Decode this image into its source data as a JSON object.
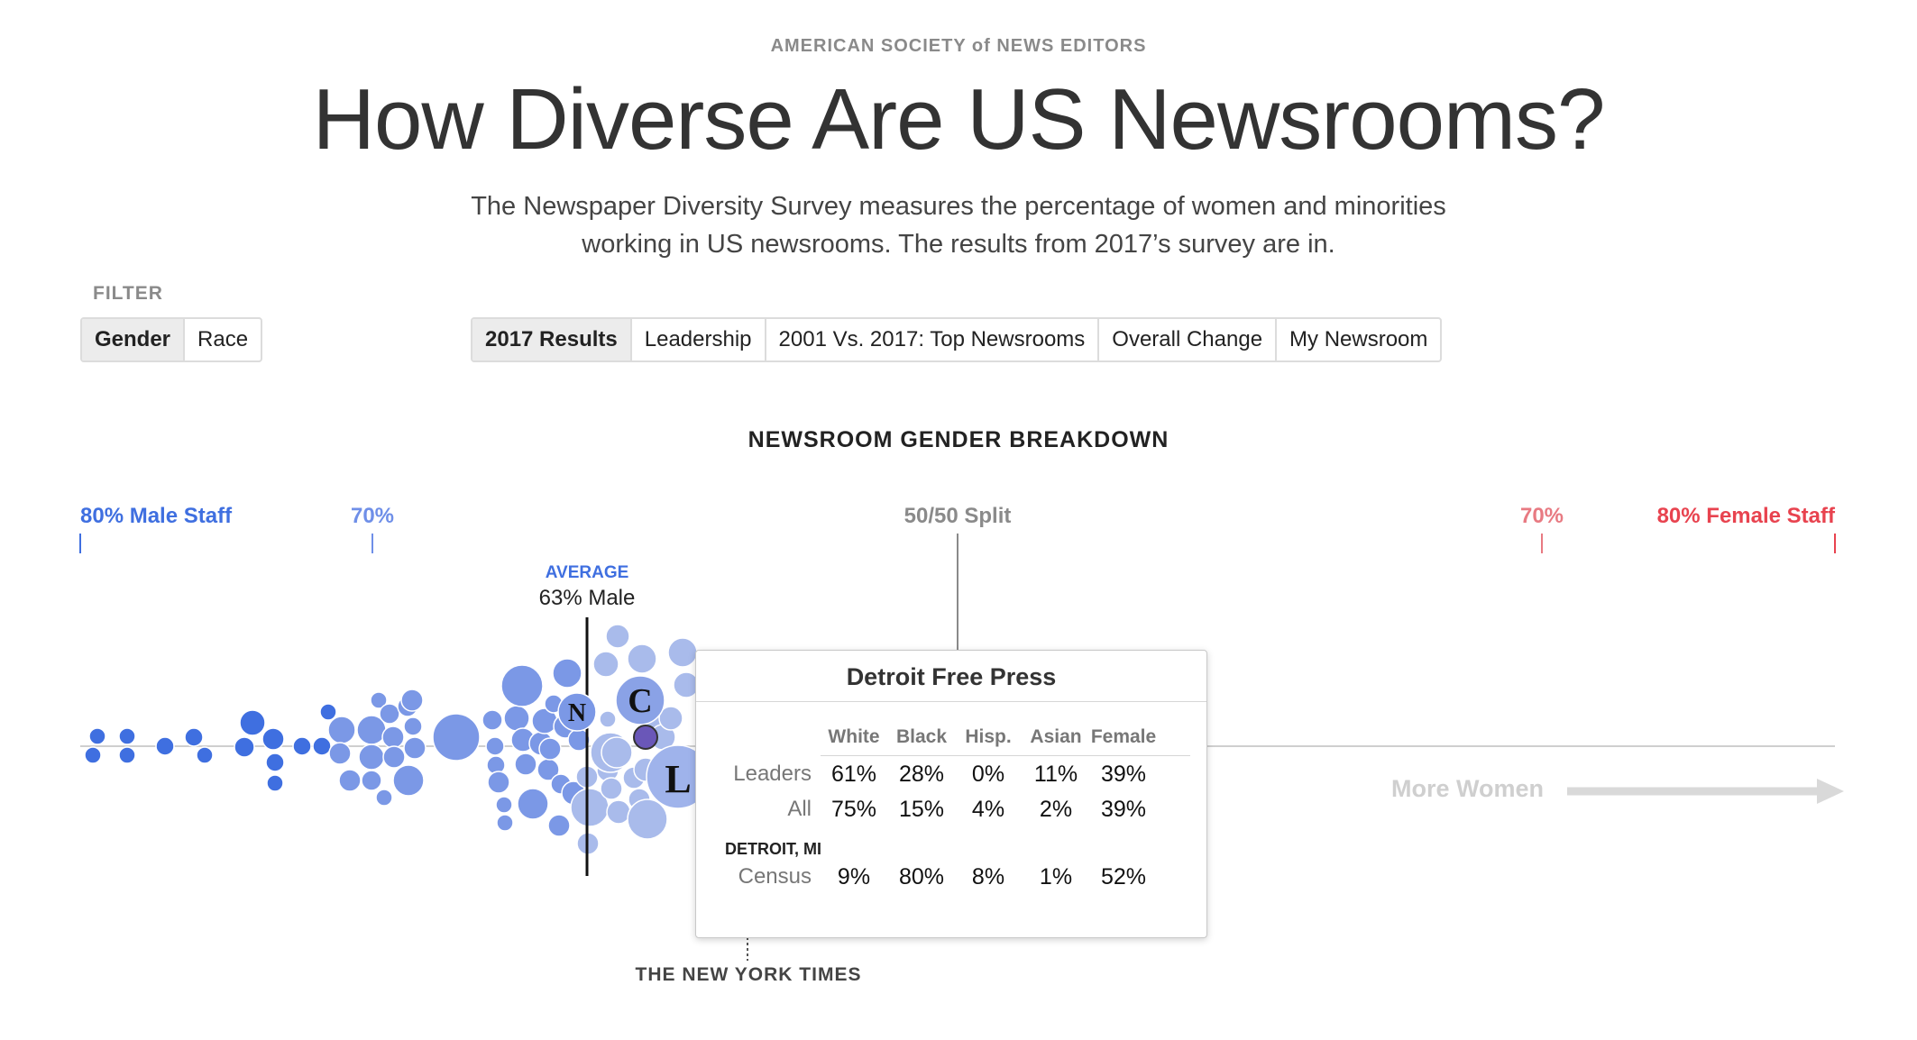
{
  "header": {
    "org": "AMERICAN SOCIETY of NEWS EDITORS",
    "title": "How Diverse Are US Newsrooms?",
    "subtitle_line1": "The Newspaper Diversity Survey measures the percentage of women and minorities",
    "subtitle_line2": "working in US newsrooms. The results from 2017’s survey are in."
  },
  "filter": {
    "label": "FILTER",
    "options": [
      {
        "label": "Gender",
        "active": true
      },
      {
        "label": "Race",
        "active": false
      }
    ]
  },
  "views": [
    {
      "label": "2017 Results",
      "active": true
    },
    {
      "label": "Leadership",
      "active": false
    },
    {
      "label": "2001 Vs. 2017: Top Newsrooms",
      "active": false
    },
    {
      "label": "Overall Change",
      "active": false
    },
    {
      "label": "My Newsroom",
      "active": false
    }
  ],
  "chart": {
    "title": "NEWSROOM GENDER BREAKDOWN",
    "scale": {
      "left_label": "80% Male Staff",
      "left70_label": "70%",
      "center_label": "50/50 Split",
      "right70_label": "70%",
      "right_label": "80% Female Staff"
    },
    "average": {
      "label": "AVERAGE",
      "value_label": "63% Male",
      "percent_male": 63
    },
    "more_women_label": "More Women",
    "nyt_label": "THE NEW YORK TIMES",
    "colors": {
      "male": "#3f6fe0",
      "mid": "#7b98e6",
      "light": "#a9bbeb",
      "female": "#e8434f",
      "neutral": "#8a8a8a",
      "highlight": "#6a57b8"
    },
    "logo_letters": [
      "N",
      "C",
      "L"
    ]
  },
  "tooltip": {
    "title": "Detroit Free Press",
    "headers": [
      "White",
      "Black",
      "Hisp.",
      "Asian",
      "Female"
    ],
    "rows": [
      {
        "label": "Leaders",
        "values": [
          "61%",
          "28%",
          "0%",
          "11%",
          "39%"
        ]
      },
      {
        "label": "All",
        "values": [
          "75%",
          "15%",
          "4%",
          "2%",
          "39%"
        ]
      }
    ],
    "location": "DETROIT, MI",
    "census": {
      "label": "Census",
      "values": [
        "9%",
        "80%",
        "8%",
        "1%",
        "52%"
      ]
    }
  }
}
